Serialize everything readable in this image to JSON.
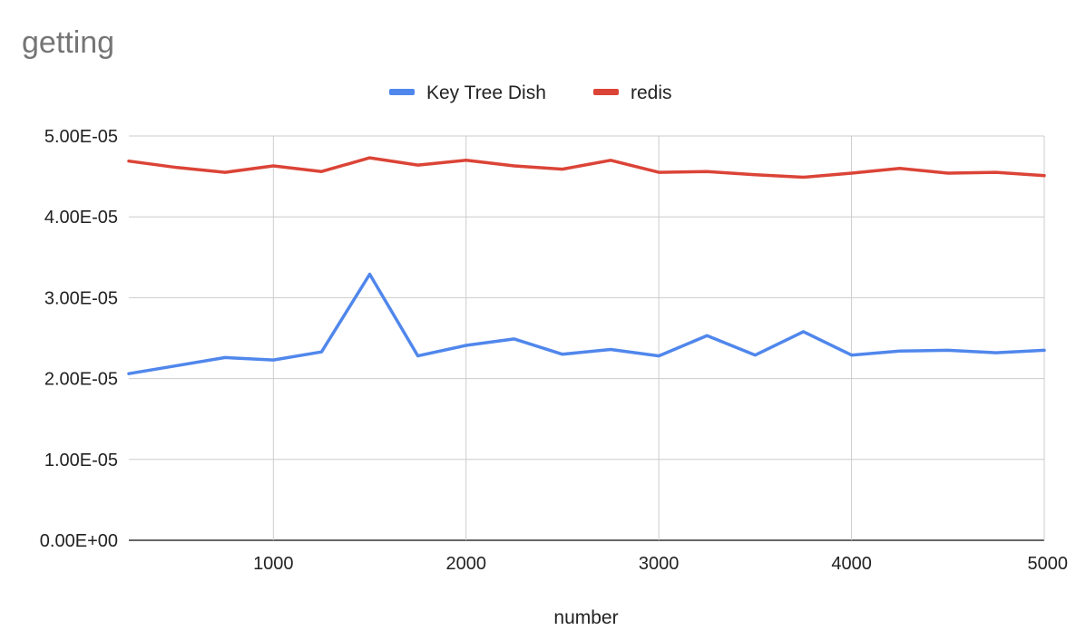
{
  "chart_data": {
    "type": "line",
    "title": "getting",
    "xlabel": "number",
    "ylabel": "",
    "xlim": [
      250,
      5000
    ],
    "ylim": [
      0,
      5e-05
    ],
    "grid": true,
    "legend_position": "top",
    "x": [
      250,
      500,
      750,
      1000,
      1250,
      1500,
      1750,
      2000,
      2250,
      2500,
      2750,
      3000,
      3250,
      3500,
      3750,
      4000,
      4250,
      4500,
      4750,
      5000
    ],
    "x_ticks": [
      1000,
      2000,
      3000,
      4000,
      5000
    ],
    "x_tick_labels": [
      "1000",
      "2000",
      "3000",
      "4000",
      "5000"
    ],
    "y_ticks": [
      0,
      1e-05,
      2e-05,
      3e-05,
      4e-05,
      5e-05
    ],
    "y_tick_labels": [
      "0.00E+00",
      "1.00E-05",
      "2.00E-05",
      "3.00E-05",
      "4.00E-05",
      "5.00E-05"
    ],
    "series": [
      {
        "name": "Key Tree Dish",
        "color": "#5087EC",
        "values": [
          2.06e-05,
          2.16e-05,
          2.26e-05,
          2.23e-05,
          2.33e-05,
          3.29e-05,
          2.28e-05,
          2.41e-05,
          2.49e-05,
          2.3e-05,
          2.36e-05,
          2.28e-05,
          2.53e-05,
          2.29e-05,
          2.58e-05,
          2.29e-05,
          2.34e-05,
          2.35e-05,
          2.32e-05,
          2.35e-05
        ]
      },
      {
        "name": "redis",
        "color": "#DB4437",
        "values": [
          4.69e-05,
          4.61e-05,
          4.55e-05,
          4.63e-05,
          4.56e-05,
          4.73e-05,
          4.64e-05,
          4.7e-05,
          4.63e-05,
          4.59e-05,
          4.7e-05,
          4.55e-05,
          4.56e-05,
          4.52e-05,
          4.49e-05,
          4.54e-05,
          4.6e-05,
          4.54e-05,
          4.55e-05,
          4.51e-05
        ]
      }
    ]
  }
}
